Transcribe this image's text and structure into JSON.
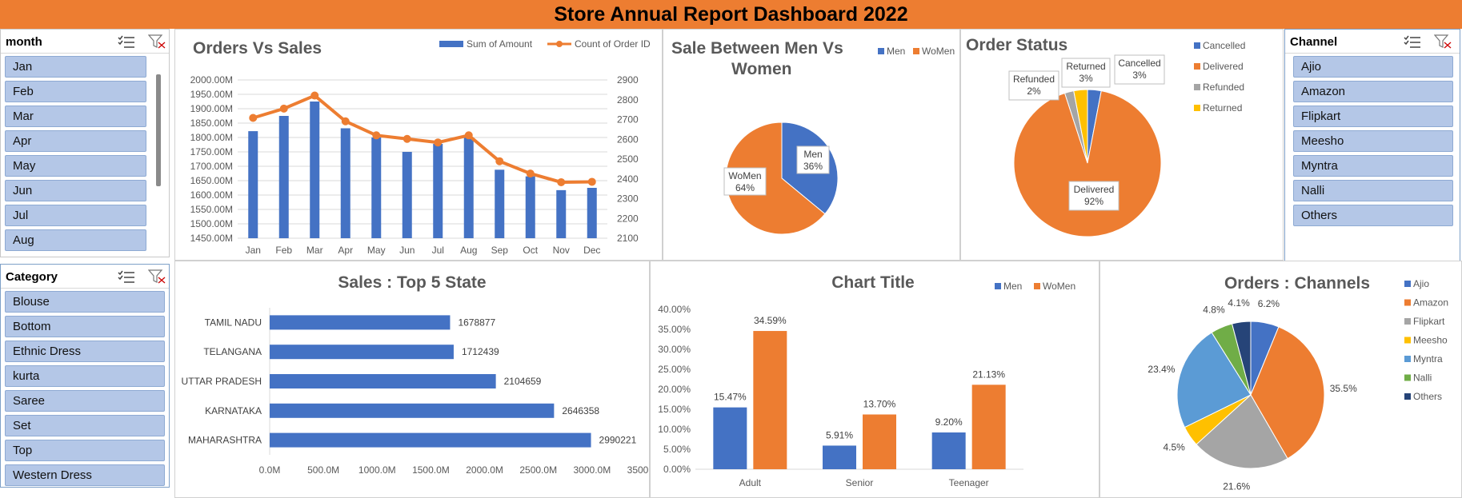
{
  "header": {
    "title": "Store Annual Report Dashboard 2022"
  },
  "colors": {
    "header_bg": "#ED7D31",
    "blue": "#4472C4",
    "orange": "#ED7D31",
    "gray": "#A5A5A5",
    "yellow": "#FFC000",
    "lightblue": "#5B9BD5",
    "green": "#70AD47",
    "navy": "#264478",
    "slicer_item": "#B4C7E7"
  },
  "month_slicer": {
    "title": "month",
    "items": [
      "Jan",
      "Feb",
      "Mar",
      "Apr",
      "May",
      "Jun",
      "Jul",
      "Aug"
    ]
  },
  "category_slicer": {
    "title": "Category",
    "items": [
      "Blouse",
      "Bottom",
      "Ethnic Dress",
      "kurta",
      "Saree",
      "Set",
      "Top",
      "Western Dress"
    ]
  },
  "channel_slicer": {
    "title": "Channel",
    "items": [
      "Ajio",
      "Amazon",
      "Flipkart",
      "Meesho",
      "Myntra",
      "Nalli",
      "Others"
    ]
  },
  "icons": {
    "multiselect": "multi-select-icon",
    "clear_filter": "clear-filter-icon"
  },
  "chart_data": [
    {
      "id": "orders_vs_sales",
      "type": "bar",
      "title": "Orders Vs Sales",
      "categories": [
        "Jan",
        "Feb",
        "Mar",
        "Apr",
        "May",
        "Jun",
        "Jul",
        "Aug",
        "Sep",
        "Oct",
        "Nov",
        "Dec"
      ],
      "series": [
        {
          "name": "Sum of Amount",
          "type": "bar",
          "axis": "left",
          "values": [
            1822,
            1875,
            1925,
            1832,
            1800,
            1750,
            1778,
            1800,
            1688,
            1665,
            1617,
            1625
          ]
        },
        {
          "name": "Count of Order ID",
          "type": "line",
          "axis": "right",
          "values": [
            2708,
            2755,
            2821,
            2691,
            2620,
            2602,
            2584,
            2620,
            2489,
            2427,
            2383,
            2385
          ]
        }
      ],
      "y_ticks": [
        "1450.00M",
        "1500.00M",
        "1550.00M",
        "1600.00M",
        "1650.00M",
        "1700.00M",
        "1750.00M",
        "1800.00M",
        "1850.00M",
        "1900.00M",
        "1950.00M",
        "2000.00M"
      ],
      "ylim": [
        1450,
        2000
      ],
      "y2_ticks": [
        "2100",
        "2200",
        "2300",
        "2400",
        "2500",
        "2600",
        "2700",
        "2800",
        "2900"
      ],
      "y2lim": [
        2100,
        2900
      ],
      "grid": true,
      "legend": "top-right"
    },
    {
      "id": "men_vs_women",
      "type": "pie",
      "title": "Sale Between Men Vs Women",
      "labels": [
        "Men",
        "WoMen"
      ],
      "values": [
        36,
        64
      ],
      "data_labels": [
        "36%",
        "64%"
      ],
      "legend": "top-right"
    },
    {
      "id": "order_status",
      "type": "pie",
      "title": "Order Status",
      "labels": [
        "Cancelled",
        "Delivered",
        "Refunded",
        "Returned"
      ],
      "values": [
        3,
        92,
        2,
        3
      ],
      "data_labels": [
        "3%",
        "92%",
        "2%",
        "3%"
      ],
      "legend": "right"
    },
    {
      "id": "top5_state",
      "type": "bar",
      "orientation": "horizontal",
      "title": "Sales : Top 5 State",
      "categories": [
        "TAMIL NADU",
        "TELANGANA",
        "UTTAR PRADESH",
        "KARNATAKA",
        "MAHARASHTRA"
      ],
      "values": [
        1678877,
        1712439,
        2104659,
        2646358,
        2990221
      ],
      "data_labels": [
        "1678877",
        "1712439",
        "2104659",
        "2646358",
        "2990221"
      ],
      "x_ticks": [
        "0.0M",
        "500.0M",
        "1000.0M",
        "1500.0M",
        "2000.0M",
        "2500.0M",
        "3000.0M",
        "3500.0M"
      ],
      "xlim": [
        0,
        3500000
      ],
      "grid": false
    },
    {
      "id": "age_group",
      "type": "bar",
      "title": "Chart Title",
      "categories": [
        "Adult",
        "Senior",
        "Teenager"
      ],
      "series": [
        {
          "name": "Men",
          "values": [
            15.47,
            5.91,
            9.2
          ],
          "data_labels": [
            "15.47%",
            "5.91%",
            "9.20%"
          ]
        },
        {
          "name": "WoMen",
          "values": [
            34.59,
            13.7,
            21.13
          ],
          "data_labels": [
            "34.59%",
            "13.70%",
            "21.13%"
          ]
        }
      ],
      "y_ticks": [
        "0.00%",
        "5.00%",
        "10.00%",
        "15.00%",
        "20.00%",
        "25.00%",
        "30.00%",
        "35.00%",
        "40.00%"
      ],
      "ylim": [
        0,
        40
      ],
      "legend": "top-right"
    },
    {
      "id": "orders_channels",
      "type": "pie",
      "title": "Orders : Channels",
      "labels": [
        "Ajio",
        "Amazon",
        "Flipkart",
        "Meesho",
        "Myntra",
        "Nalli",
        "Others"
      ],
      "values": [
        6.2,
        35.5,
        21.6,
        4.5,
        23.4,
        4.8,
        4.1
      ],
      "data_labels": [
        "6.2%",
        "35.5%",
        "21.6%",
        "4.5%",
        "23.4%",
        "4.8%",
        "4.1%"
      ],
      "legend": "right"
    }
  ]
}
